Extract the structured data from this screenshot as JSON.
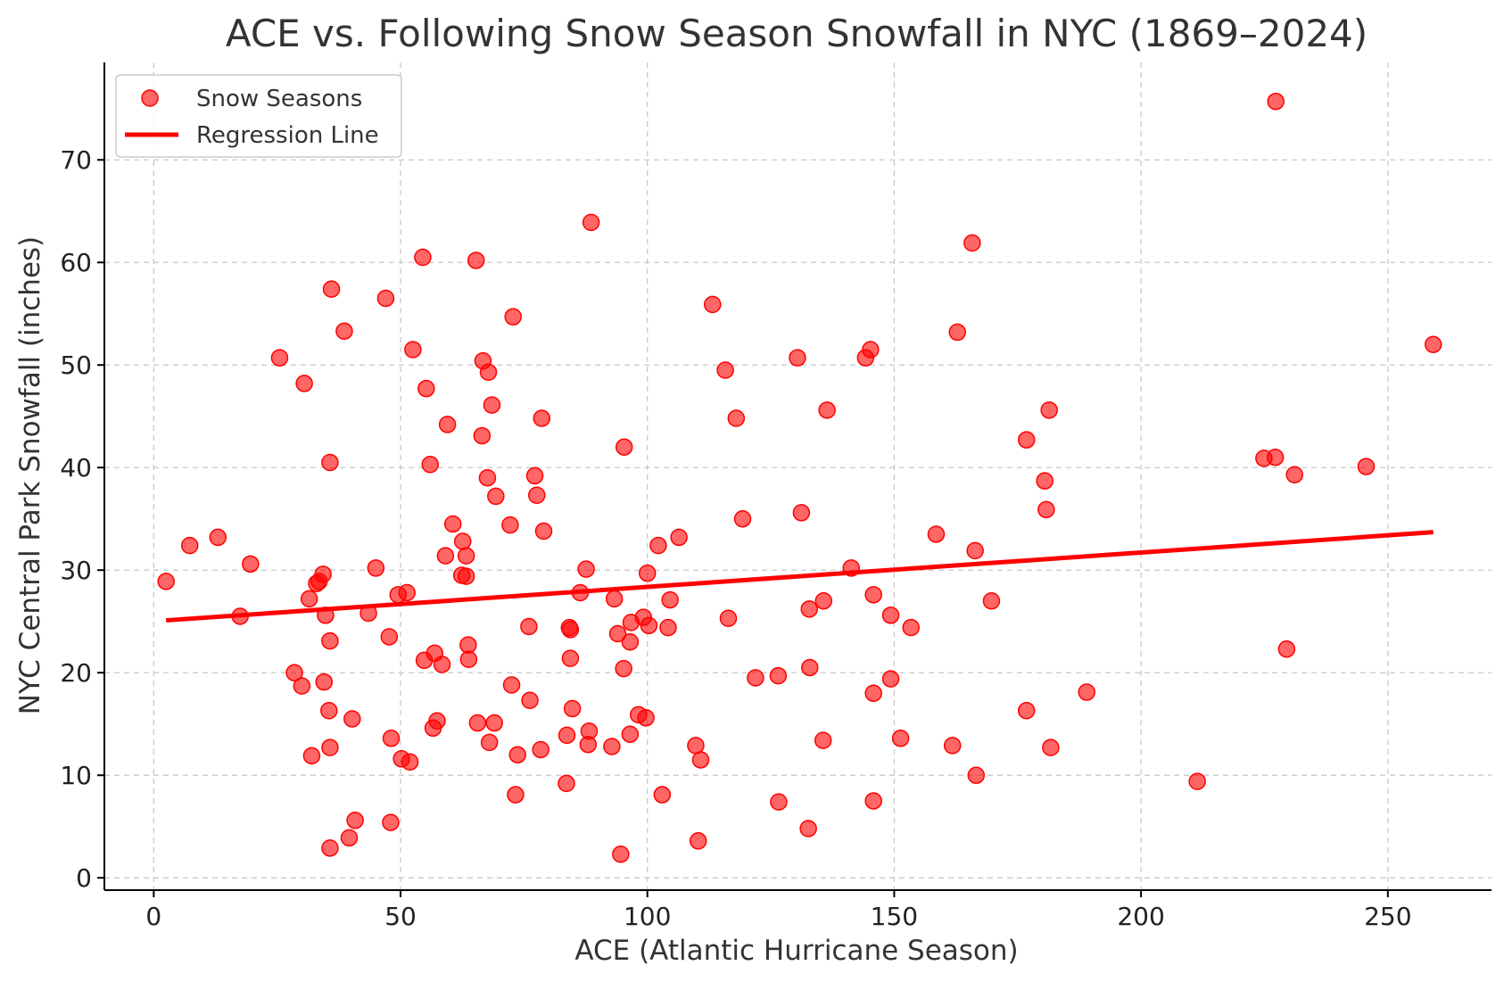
{
  "chart_data": {
    "type": "scatter",
    "title": "ACE vs. Following Snow Season Snowfall in NYC (1869–2024)",
    "xlabel": "ACE (Atlantic Hurricane Season)",
    "ylabel": "NYC Central Park Snowfall (inches)",
    "xlim": [
      -10,
      271
    ],
    "ylim": [
      -1.2,
      79.5
    ],
    "xticks": [
      0,
      50,
      100,
      150,
      200,
      250
    ],
    "yticks": [
      0,
      10,
      20,
      30,
      40,
      50,
      60,
      70
    ],
    "grid": true,
    "legend_position": "top-left",
    "point_color": "#ff0000",
    "line_color": "#ff0000",
    "series": [
      {
        "name": "Snow Seasons",
        "kind": "scatter",
        "points": [
          [
            2.5,
            28.9
          ],
          [
            7.3,
            32.4
          ],
          [
            13,
            33.2
          ],
          [
            17.5,
            25.5
          ],
          [
            19.6,
            30.6
          ],
          [
            25.5,
            50.7
          ],
          [
            28.5,
            20
          ],
          [
            30,
            18.7
          ],
          [
            30.5,
            48.2
          ],
          [
            31.5,
            27.2
          ],
          [
            32,
            11.9
          ],
          [
            33,
            28.7
          ],
          [
            33.5,
            28.9
          ],
          [
            34.3,
            29.6
          ],
          [
            34.5,
            19.1
          ],
          [
            34.8,
            25.6
          ],
          [
            35.5,
            16.3
          ],
          [
            35.7,
            40.5
          ],
          [
            35.7,
            12.7
          ],
          [
            35.7,
            23.1
          ],
          [
            35.7,
            2.9
          ],
          [
            36,
            57.4
          ],
          [
            38.6,
            53.3
          ],
          [
            39.6,
            3.9
          ],
          [
            40.2,
            15.5
          ],
          [
            40.8,
            5.6
          ],
          [
            43.5,
            25.8
          ],
          [
            45,
            30.2
          ],
          [
            47,
            56.5
          ],
          [
            47.7,
            23.5
          ],
          [
            48,
            5.4
          ],
          [
            48.1,
            13.6
          ],
          [
            49.5,
            27.6
          ],
          [
            50.2,
            11.6
          ],
          [
            51.3,
            27.8
          ],
          [
            51.9,
            11.3
          ],
          [
            52.5,
            51.5
          ],
          [
            54.5,
            60.5
          ],
          [
            54.8,
            21.2
          ],
          [
            55.2,
            47.7
          ],
          [
            56,
            40.3
          ],
          [
            56.6,
            14.6
          ],
          [
            56.9,
            21.9
          ],
          [
            57.4,
            15.3
          ],
          [
            58.4,
            20.8
          ],
          [
            59.1,
            31.4
          ],
          [
            59.5,
            44.2
          ],
          [
            60.6,
            34.5
          ],
          [
            62.4,
            29.5
          ],
          [
            62.6,
            32.8
          ],
          [
            63.3,
            29.4
          ],
          [
            63.3,
            31.4
          ],
          [
            63.7,
            22.7
          ],
          [
            63.8,
            21.3
          ],
          [
            65.3,
            60.2
          ],
          [
            65.6,
            15.1
          ],
          [
            66.5,
            43.1
          ],
          [
            66.7,
            50.4
          ],
          [
            67.6,
            39
          ],
          [
            67.8,
            49.3
          ],
          [
            68,
            13.2
          ],
          [
            68.5,
            46.1
          ],
          [
            69,
            15.1
          ],
          [
            69.3,
            37.2
          ],
          [
            72.2,
            34.4
          ],
          [
            72.5,
            18.8
          ],
          [
            72.8,
            54.7
          ],
          [
            73.3,
            8.1
          ],
          [
            73.7,
            12
          ],
          [
            76,
            24.5
          ],
          [
            76.2,
            17.3
          ],
          [
            77.2,
            39.2
          ],
          [
            77.6,
            37.3
          ],
          [
            78.4,
            12.5
          ],
          [
            78.6,
            44.8
          ],
          [
            79,
            33.8
          ],
          [
            83.6,
            9.2
          ],
          [
            83.7,
            13.9
          ],
          [
            84.2,
            24.4
          ],
          [
            84.4,
            24.2
          ],
          [
            84.4,
            21.4
          ],
          [
            84.8,
            16.5
          ],
          [
            86.4,
            27.8
          ],
          [
            87.6,
            30.1
          ],
          [
            88,
            13
          ],
          [
            88.2,
            14.3
          ],
          [
            88.6,
            63.9
          ],
          [
            92.8,
            12.8
          ],
          [
            93.3,
            27.2
          ],
          [
            94,
            23.8
          ],
          [
            94.6,
            2.3
          ],
          [
            95.2,
            20.4
          ],
          [
            95.3,
            42
          ],
          [
            96.5,
            14
          ],
          [
            96.5,
            23
          ],
          [
            96.7,
            24.9
          ],
          [
            98.2,
            15.9
          ],
          [
            99.2,
            25.4
          ],
          [
            99.7,
            15.6
          ],
          [
            100,
            29.7
          ],
          [
            100.3,
            24.6
          ],
          [
            102.2,
            32.4
          ],
          [
            103,
            8.1
          ],
          [
            104.2,
            24.4
          ],
          [
            104.6,
            27.1
          ],
          [
            106.4,
            33.2
          ],
          [
            109.8,
            12.9
          ],
          [
            110.3,
            3.6
          ],
          [
            110.8,
            11.5
          ],
          [
            113.2,
            55.9
          ],
          [
            115.8,
            49.5
          ],
          [
            116.4,
            25.3
          ],
          [
            118,
            44.8
          ],
          [
            119.3,
            35
          ],
          [
            121.9,
            19.5
          ],
          [
            126.5,
            19.7
          ],
          [
            126.6,
            7.4
          ],
          [
            130.4,
            50.7
          ],
          [
            131.2,
            35.6
          ],
          [
            132.6,
            4.8
          ],
          [
            132.8,
            26.2
          ],
          [
            132.9,
            20.5
          ],
          [
            135.6,
            13.4
          ],
          [
            135.7,
            27
          ],
          [
            136.4,
            45.6
          ],
          [
            141.3,
            30.2
          ],
          [
            144.2,
            50.7
          ],
          [
            145.2,
            51.5
          ],
          [
            145.8,
            27.6
          ],
          [
            145.8,
            18
          ],
          [
            145.8,
            7.5
          ],
          [
            149.3,
            25.6
          ],
          [
            149.3,
            19.4
          ],
          [
            151.3,
            13.6
          ],
          [
            153.4,
            24.4
          ],
          [
            158.5,
            33.5
          ],
          [
            161.8,
            12.9
          ],
          [
            162.8,
            53.2
          ],
          [
            165.8,
            61.9
          ],
          [
            166.4,
            31.9
          ],
          [
            166.6,
            10
          ],
          [
            169.7,
            27
          ],
          [
            176.8,
            42.7
          ],
          [
            176.8,
            16.3
          ],
          [
            180.5,
            38.7
          ],
          [
            180.8,
            35.9
          ],
          [
            181.4,
            45.6
          ],
          [
            181.7,
            12.7
          ],
          [
            189,
            18.1
          ],
          [
            211.4,
            9.4
          ],
          [
            224.9,
            40.9
          ],
          [
            227.2,
            41
          ],
          [
            227.3,
            75.7
          ],
          [
            229.5,
            22.3
          ],
          [
            231.1,
            39.3
          ],
          [
            245.6,
            40.1
          ],
          [
            259.2,
            52
          ]
        ]
      },
      {
        "name": "Regression Line",
        "kind": "line",
        "points": [
          [
            2.5,
            25.1
          ],
          [
            259.2,
            33.7
          ]
        ]
      }
    ]
  }
}
